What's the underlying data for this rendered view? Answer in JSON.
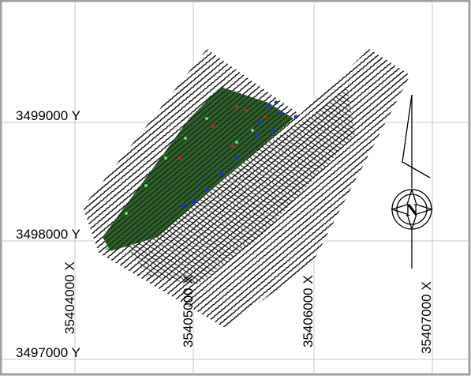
{
  "map": {
    "y_labels": [
      "3499000 Y",
      "3498000 Y",
      "3497000 Y"
    ],
    "x_labels": [
      "35404000 X",
      "35405000 X",
      "35406000 X",
      "35407000 X"
    ],
    "compass": {
      "label": "N"
    }
  }
}
